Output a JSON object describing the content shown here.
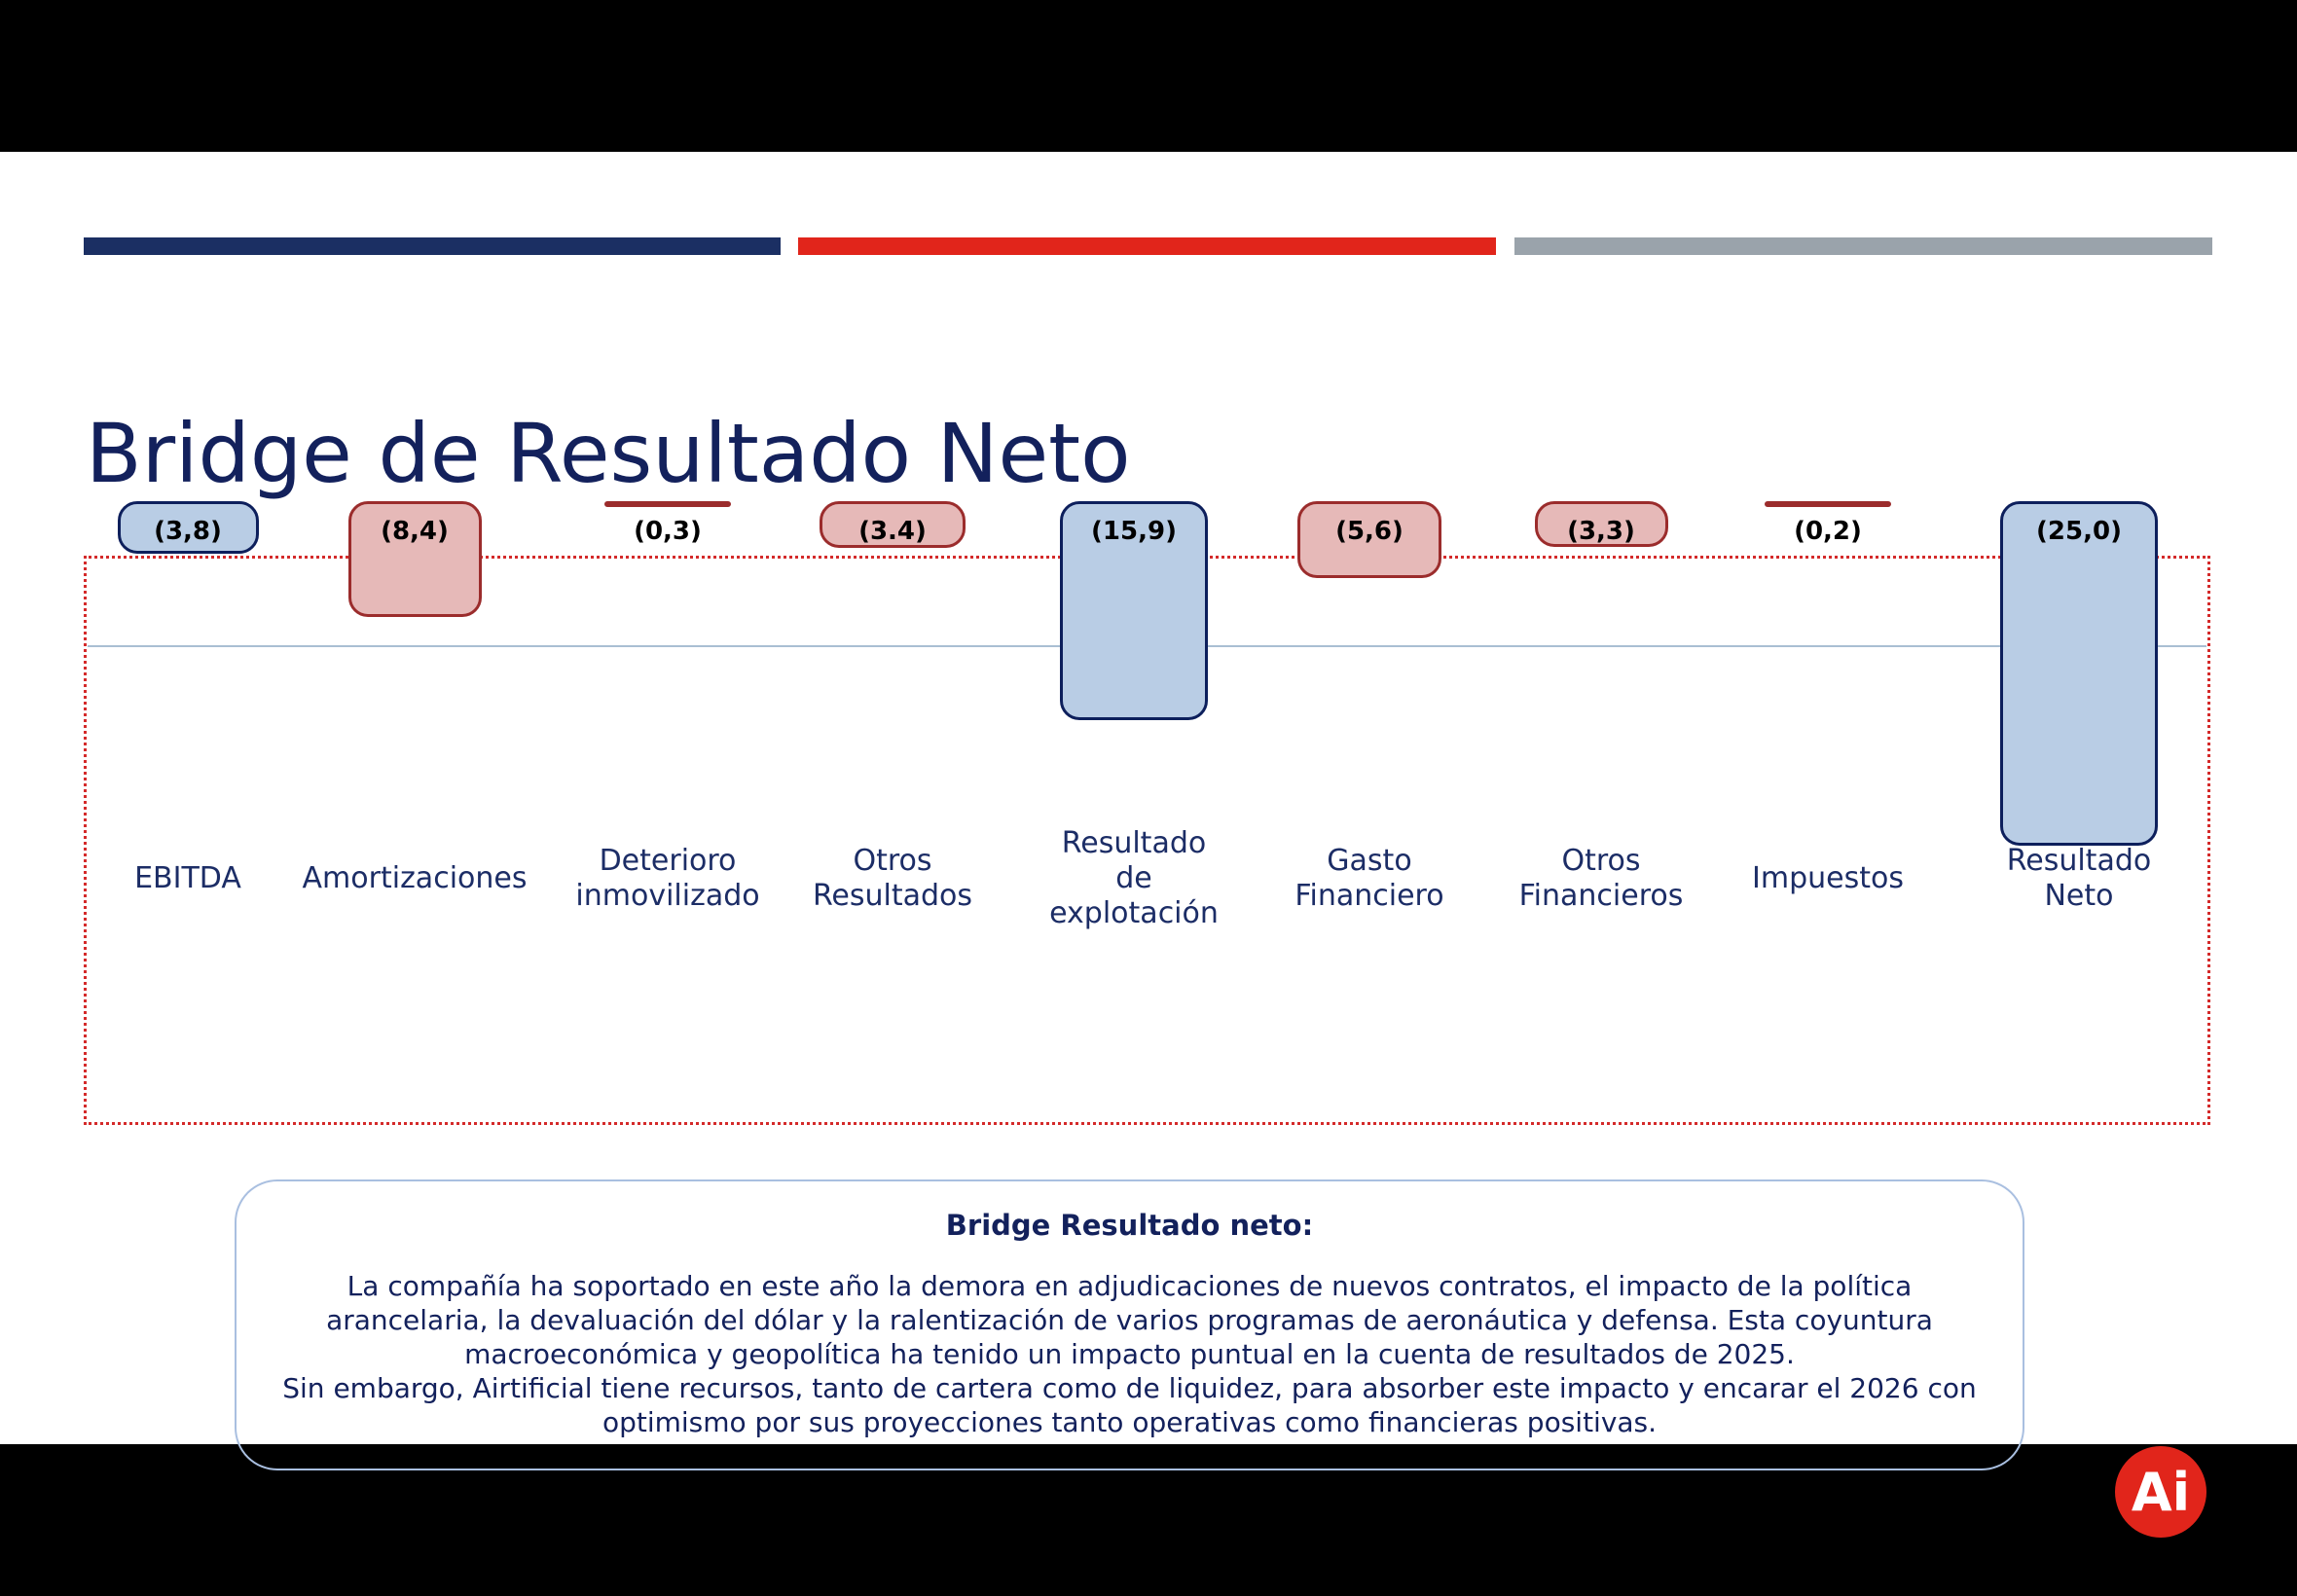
{
  "chart_data": {
    "type": "bar",
    "title": "Bridge de Resultado Neto",
    "categories": [
      "EBITDA",
      "Amortizaciones",
      "Deterioro inmovilizado",
      "Otros Resultados",
      "Resultado de explotación",
      "Gasto Financiero",
      "Otros Financieros",
      "Impuestos",
      "Resultado Neto"
    ],
    "values": [
      -3.8,
      -8.4,
      -0.3,
      -3.4,
      -15.9,
      -5.6,
      -3.3,
      -0.2,
      -25.0
    ],
    "value_labels": [
      "(3,8)",
      "(8,4)",
      "(0,3)",
      "(3.4)",
      "(15,9)",
      "(5,6)",
      "(3,3)",
      "(0,2)",
      "(25,0)"
    ],
    "colors": [
      "#b9cde5",
      "#e6b9b8",
      "#e6b9b8",
      "#e6b9b8",
      "#b9cde5",
      "#e6b9b8",
      "#e6b9b8",
      "#e6b9b8",
      "#b9cde5"
    ],
    "edge_colors": [
      "#0d1f5c",
      "#9b2c2c",
      "#9b2c2c",
      "#9b2c2c",
      "#0d1f5c",
      "#9b2c2c",
      "#9b2c2c",
      "#9b2c2c",
      "#0d1f5c"
    ],
    "ylim": [
      -25,
      0
    ]
  },
  "note": {
    "title": "Bridge Resultado neto:",
    "paragraphs": [
      "La compañía ha soportado en este año la demora en adjudicaciones de nuevos contratos, el impacto de la política arancelaria, la devaluación del dólar y la ralentización de varios programas de aeronáutica y defensa. Esta coyuntura macroeconómica y geopolítica ha tenido un impacto puntual en la cuenta de resultados de 2025.",
      "Sin embargo, Airtificial tiene recursos, tanto de cartera como de liquidez, para absorber este impacto y encarar el 2026 con optimismo por sus proyecciones tanto operativas como financieras positivas."
    ]
  },
  "logo": "Ai"
}
